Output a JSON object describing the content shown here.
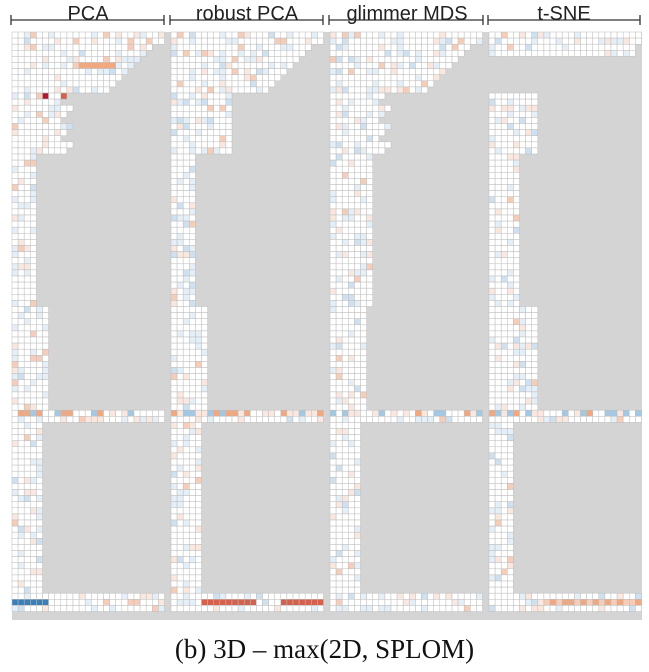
{
  "caption": "(b)  3D – max(2D, SPLOM)",
  "chart_data": {
    "type": "heatmap",
    "columns": [
      "PCA",
      "robust PCA",
      "glimmer MDS",
      "t-SNE"
    ],
    "background_color": "#d4d4d4",
    "grid_color": "#bdbdbd",
    "colors": {
      "empty": "#ffffff",
      "b1": "#e5eff8",
      "b2": "#cfe1f0",
      "b3": "#a4c8e1",
      "b4": "#5a9bca",
      "b5": "#3a7fba",
      "o1": "#fae8e0",
      "o2": "#f5cdb8",
      "o3": "#f0a880",
      "o4": "#ee8a55",
      "r1": "#d4614d",
      "r2": "#b2182b"
    },
    "row_lengths": {
      "PCA": [
        25,
        1,
        25,
        24,
        22,
        1,
        20,
        1,
        20,
        21,
        1,
        20,
        20,
        20,
        20,
        1,
        9,
        1,
        9,
        1,
        8,
        9,
        9,
        8,
        8,
        1,
        1,
        1,
        1,
        1,
        1,
        1,
        1,
        4,
        1,
        1,
        1,
        1,
        1,
        1,
        1,
        1,
        1,
        1,
        1,
        1,
        1,
        1,
        1,
        1,
        1,
        1,
        1,
        1,
        1,
        1,
        1,
        1,
        1,
        1,
        1,
        1,
        1,
        1,
        1,
        1,
        1,
        1,
        1,
        1,
        1,
        1,
        1,
        1,
        1,
        1,
        1,
        1,
        1,
        1,
        1,
        1,
        1,
        1,
        1,
        1,
        1,
        1,
        1,
        1,
        1,
        1,
        1,
        1,
        1,
        1,
        1
      ],
      "robust PCA": [
        25,
        1,
        25,
        24,
        22,
        1,
        20,
        1,
        20,
        1,
        1,
        0,
        0,
        0,
        0,
        1,
        9,
        1,
        9,
        1,
        1,
        1,
        1,
        1,
        1,
        1,
        1,
        1,
        1,
        1,
        1,
        1,
        1,
        1,
        1,
        1,
        1,
        1,
        1,
        1,
        1,
        1,
        1,
        1,
        1,
        1,
        1,
        1,
        1,
        1,
        1,
        1,
        1,
        1,
        1,
        1,
        1,
        1,
        1,
        1,
        1,
        1,
        1,
        1,
        1,
        1,
        1,
        1,
        1,
        1,
        1,
        1,
        1,
        1,
        1,
        1,
        1,
        1,
        1,
        1,
        1,
        1,
        1,
        1,
        1,
        1,
        1,
        1,
        1,
        1,
        1,
        1,
        1,
        1,
        1,
        1,
        1
      ],
      "glimmer MDS": [
        25,
        1,
        25,
        24,
        22,
        1,
        20,
        1,
        20,
        21,
        1,
        20,
        20,
        20,
        20,
        1,
        9,
        1,
        9,
        1,
        8,
        9,
        9,
        8,
        8,
        1,
        1,
        1,
        1,
        1,
        1,
        1,
        1,
        1,
        1,
        1,
        1,
        1,
        1,
        1,
        1,
        1,
        1,
        1,
        1,
        1,
        1,
        1,
        1,
        1,
        1,
        1,
        1,
        1,
        1,
        1,
        1,
        1,
        1,
        1,
        1,
        1,
        1,
        1,
        1,
        1,
        1,
        1,
        1,
        1,
        1,
        1,
        1,
        1,
        1,
        1,
        1,
        1,
        1,
        1,
        1,
        1,
        1,
        1,
        1,
        1,
        1,
        1,
        1,
        1,
        1,
        1,
        1,
        1,
        1,
        1,
        1
      ],
      "t-SNE": [
        0,
        0,
        0,
        0,
        0,
        0,
        0,
        0,
        0,
        0,
        0,
        0,
        0,
        0,
        0,
        0,
        0,
        0,
        0,
        0,
        0,
        0,
        0,
        0,
        0,
        0,
        0,
        0,
        0,
        0,
        0,
        0,
        0,
        0,
        0,
        0,
        0,
        0,
        0,
        0,
        0,
        0,
        0,
        0,
        0,
        0,
        0,
        0,
        0,
        0,
        0,
        0,
        0,
        0,
        0,
        0,
        0,
        0,
        0,
        0,
        0,
        0,
        0,
        0,
        0,
        0,
        0,
        0,
        0,
        0,
        0,
        0,
        0,
        0,
        0,
        0,
        0,
        0,
        0,
        0,
        0,
        0,
        0,
        0,
        0,
        0,
        0,
        0,
        0,
        0,
        0,
        0,
        0,
        0,
        0,
        0,
        0
      ]
    }
  }
}
